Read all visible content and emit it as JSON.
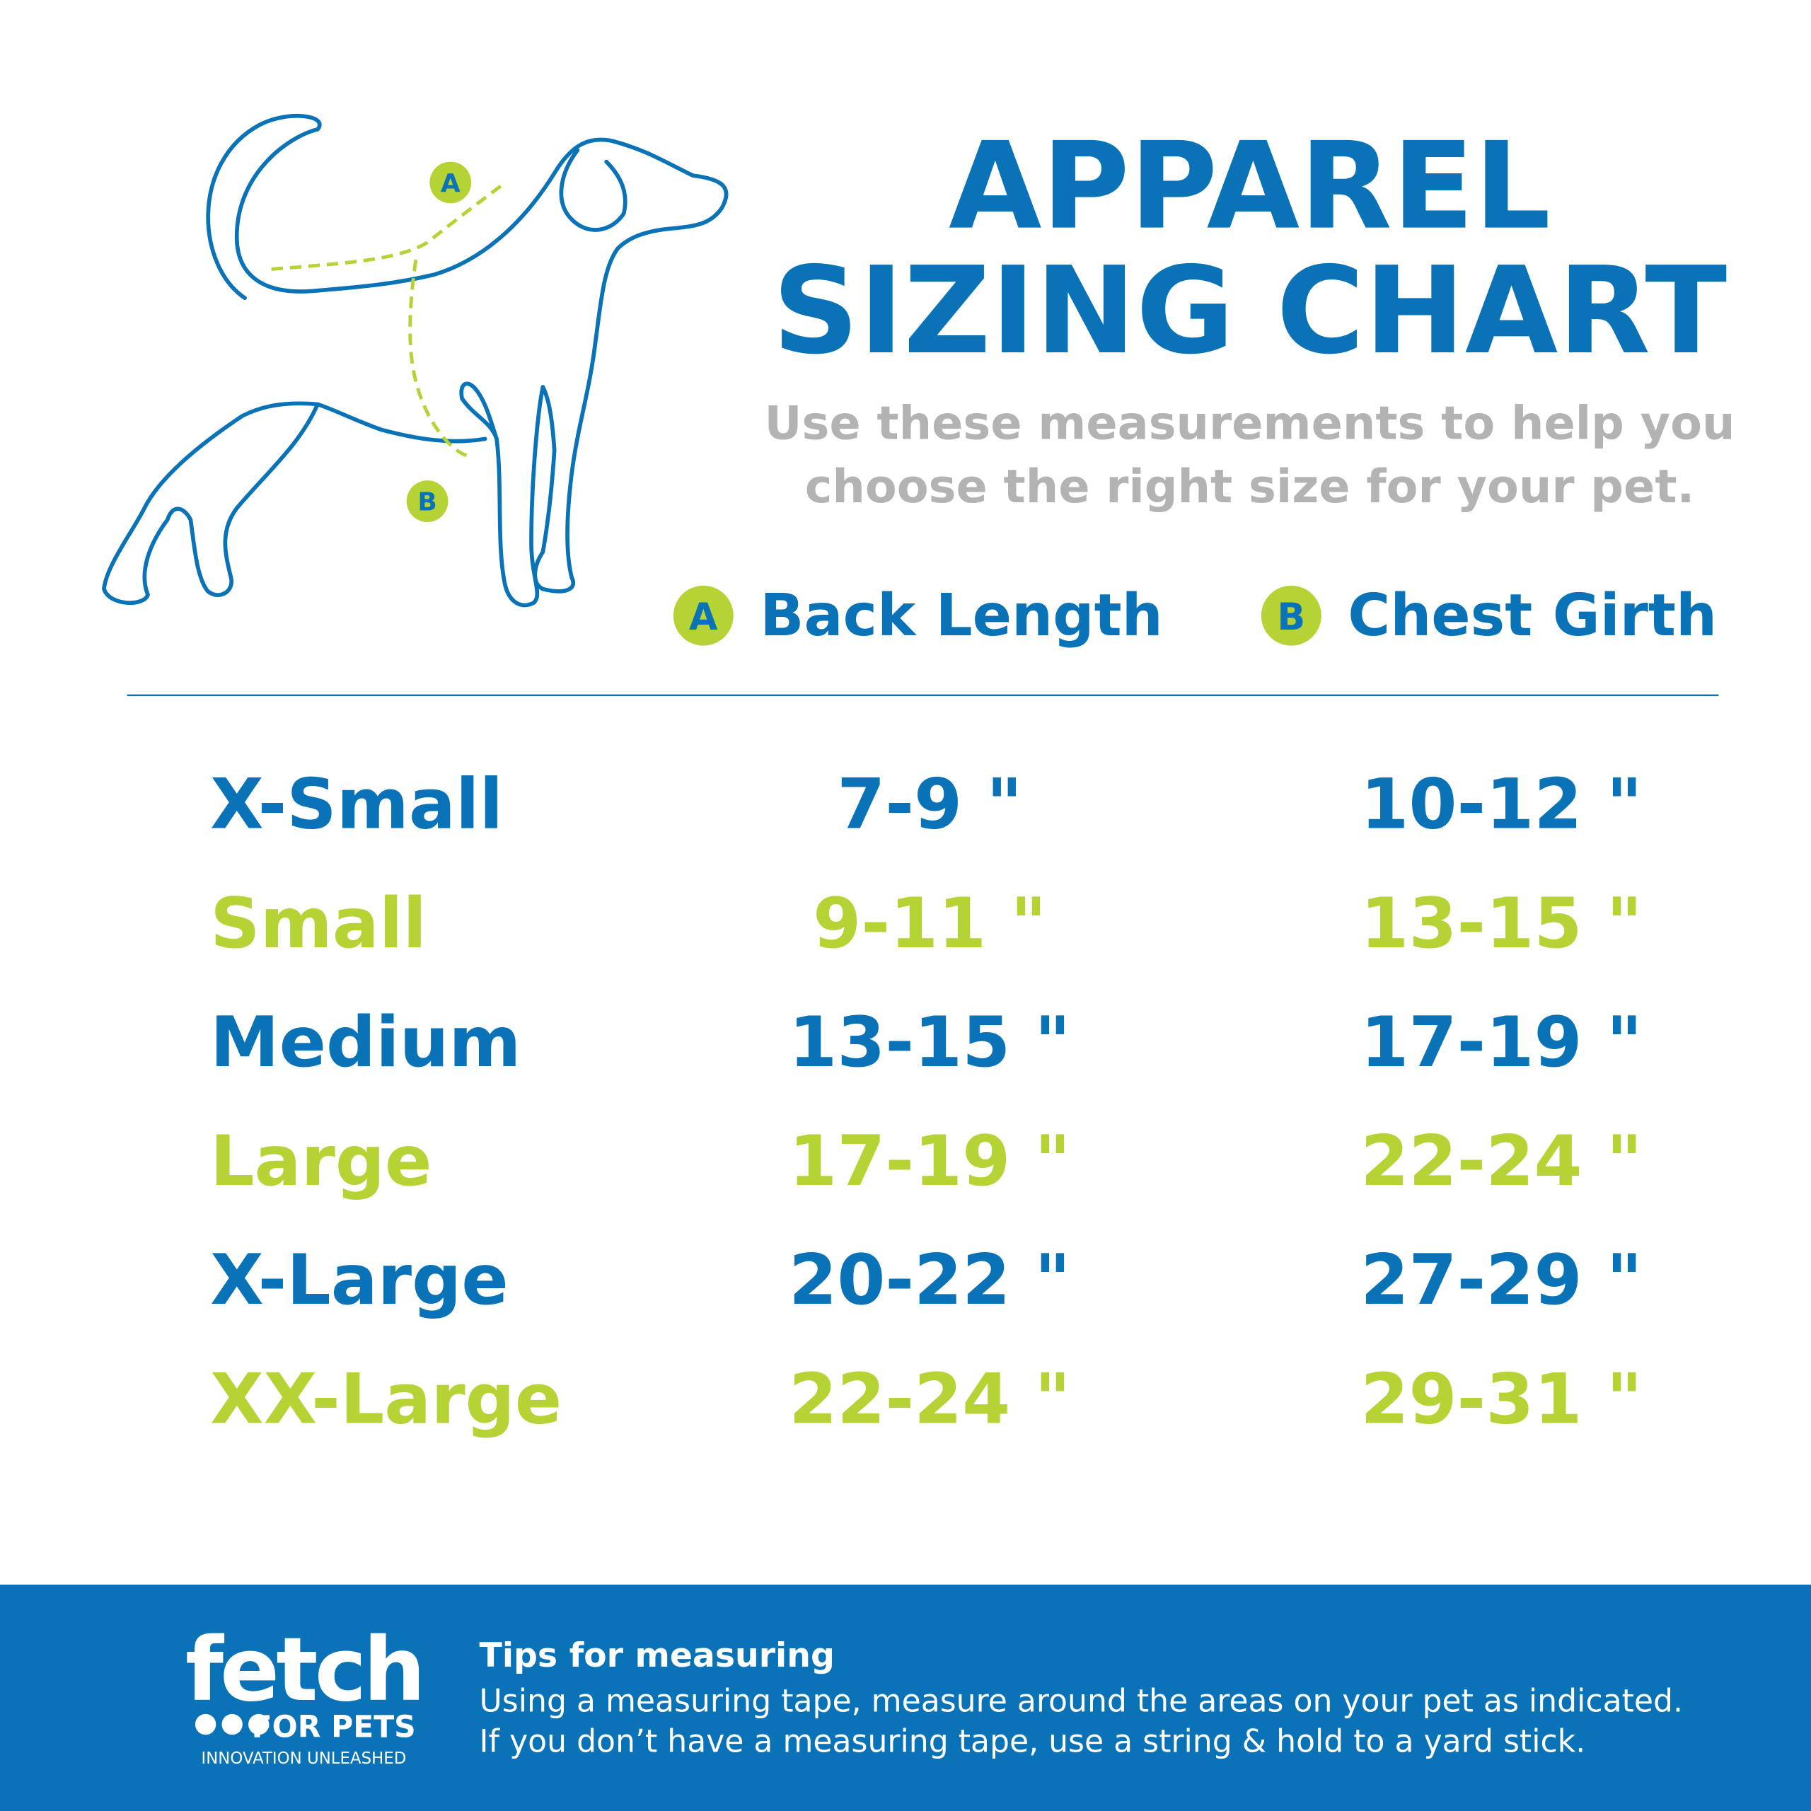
{
  "header": {
    "title_lines": [
      "APPAREL",
      "SIZING CHART"
    ],
    "subtitle_lines": [
      "Use these measurements to help you",
      "choose the right size for your pet."
    ]
  },
  "diagram": {
    "labels": [
      "A",
      "B"
    ]
  },
  "legend": [
    {
      "key": "A",
      "label": "Back Length"
    },
    {
      "key": "B",
      "label": "Chest Girth"
    }
  ],
  "table": {
    "rows": [
      [
        "X-Small",
        "7-9 \"",
        "10-12 \""
      ],
      [
        "Small",
        "9-11 \"",
        "13-15 \""
      ],
      [
        "Medium",
        "13-15 \"",
        "17-19 \""
      ],
      [
        "Large",
        "17-19 \"",
        "22-24 \""
      ],
      [
        "X-Large",
        "20-22 \"",
        "27-29 \""
      ],
      [
        "XX-Large",
        "22-24 \"",
        "29-31 \""
      ]
    ]
  },
  "footer": {
    "logo": {
      "name": "fetch",
      "sub": "FOR PETS",
      "tagline": "INNOVATION UNLEASHED"
    },
    "tips_title": "Tips for measuring",
    "tips_lines": [
      "Using a measuring tape, measure around the areas on your pet as indicated.",
      "If you don’t have a measuring tape, use a string & hold to a yard stick."
    ]
  }
}
